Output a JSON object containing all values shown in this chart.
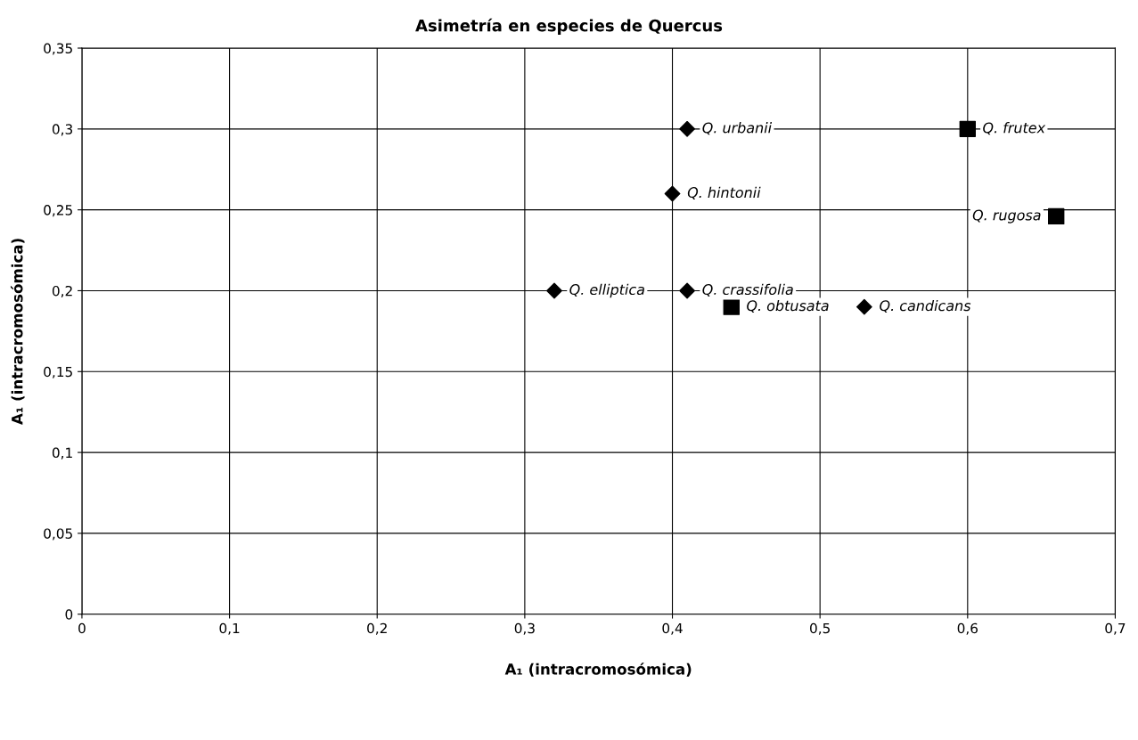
{
  "chart_data": {
    "type": "scatter",
    "title": "Asimetría en especies de Quercus",
    "xlabel": "A₁ (intracromosómica)",
    "ylabel": "A₁ (intracromosómica)",
    "xlim": [
      0,
      0.7
    ],
    "ylim": [
      0,
      0.35
    ],
    "xticks": [
      {
        "value": 0,
        "label": "0"
      },
      {
        "value": 0.1,
        "label": "0,1"
      },
      {
        "value": 0.2,
        "label": "0,2"
      },
      {
        "value": 0.3,
        "label": "0,3"
      },
      {
        "value": 0.4,
        "label": "0,4"
      },
      {
        "value": 0.5,
        "label": "0,5"
      },
      {
        "value": 0.6,
        "label": "0,6"
      },
      {
        "value": 0.7,
        "label": "0,7"
      }
    ],
    "yticks": [
      {
        "value": 0,
        "label": "0"
      },
      {
        "value": 0.05,
        "label": "0,05"
      },
      {
        "value": 0.1,
        "label": "0,1"
      },
      {
        "value": 0.15,
        "label": "0,15"
      },
      {
        "value": 0.2,
        "label": "0,2"
      },
      {
        "value": 0.25,
        "label": "0,25"
      },
      {
        "value": 0.3,
        "label": "0,3"
      },
      {
        "value": 0.35,
        "label": "0,35"
      }
    ],
    "grid": true,
    "series": [
      {
        "color": "#000000",
        "marker": "diamond",
        "x": [
          0.41,
          0.4,
          0.32,
          0.41,
          0.53
        ],
        "values": [
          0.3,
          0.26,
          0.2,
          0.2,
          0.19
        ]
      },
      {
        "color": "#000000",
        "marker": "square",
        "x": [
          0.6,
          0.66,
          0.44
        ],
        "values": [
          0.3,
          0.246,
          0.19
        ]
      }
    ],
    "annotations": [
      {
        "text": "Q. urbanii",
        "x": 0.41,
        "y": 0.3
      },
      {
        "text": "Q. hintonii",
        "x": 0.4,
        "y": 0.26
      },
      {
        "text": "Q. elliptica",
        "x": 0.32,
        "y": 0.2
      },
      {
        "text": "Q. crassifolia",
        "x": 0.41,
        "y": 0.2
      },
      {
        "text": "Q. candicans",
        "x": 0.53,
        "y": 0.19
      },
      {
        "text": "Q. frutex",
        "x": 0.6,
        "y": 0.3
      },
      {
        "text": "Q. rugosa",
        "x": 0.66,
        "y": 0.246
      },
      {
        "text": "Q. obtusata",
        "x": 0.44,
        "y": 0.19
      }
    ]
  }
}
